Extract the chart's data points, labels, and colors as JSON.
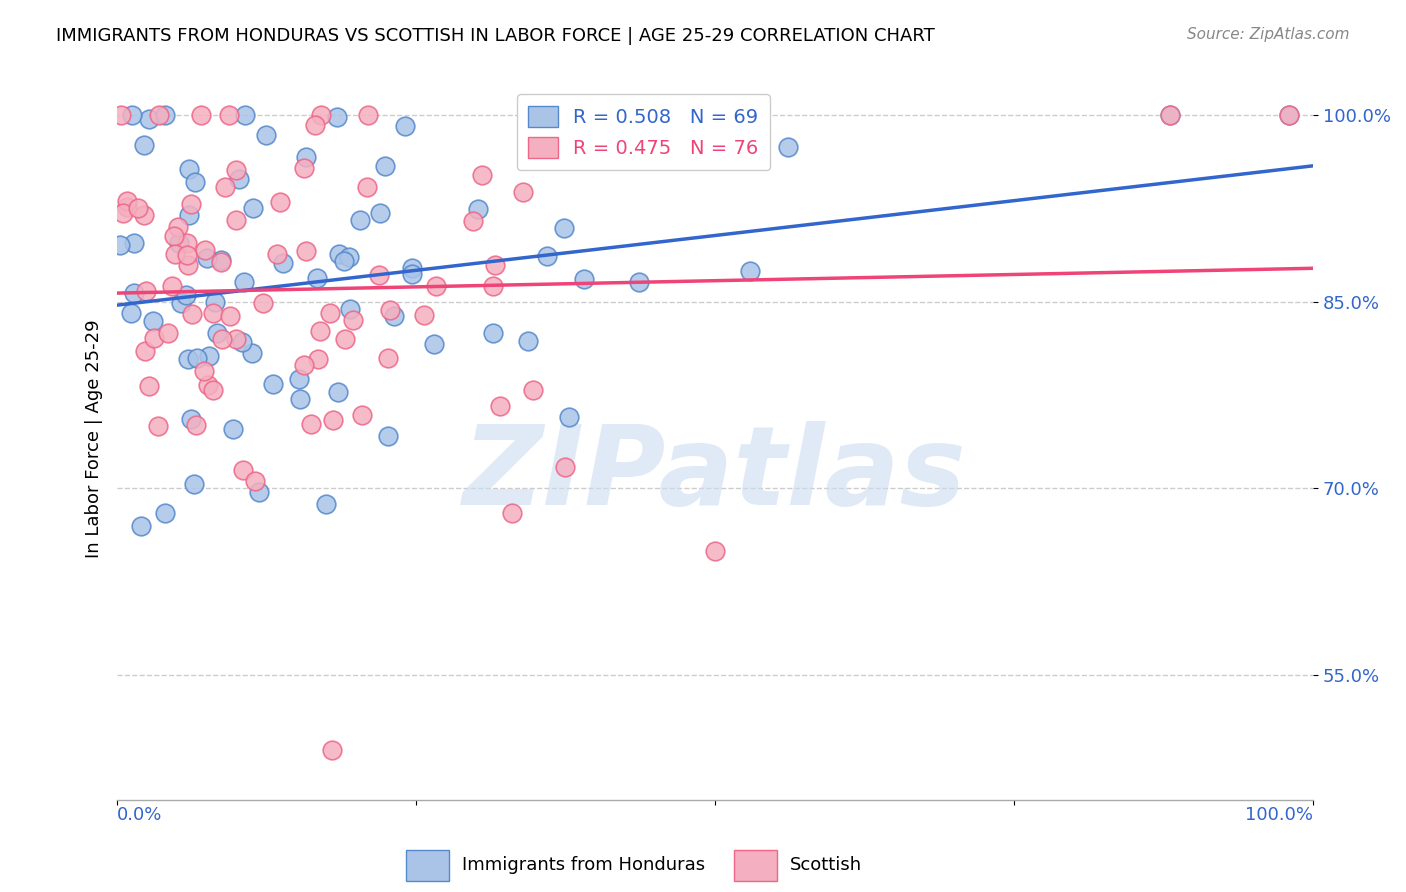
{
  "title": "IMMIGRANTS FROM HONDURAS VS SCOTTISH IN LABOR FORCE | AGE 25-29 CORRELATION CHART",
  "source": "Source: ZipAtlas.com",
  "ylabel": "In Labor Force | Age 25-29",
  "xlim": [
    0.0,
    1.0
  ],
  "ylim": [
    0.45,
    1.03
  ],
  "yticks": [
    0.55,
    0.7,
    0.85,
    1.0
  ],
  "ytick_labels": [
    "55.0%",
    "70.0%",
    "85.0%",
    "100.0%"
  ],
  "legend1_label": "R = 0.508   N = 69",
  "legend2_label": "R = 0.475   N = 76",
  "watermark": "ZIPatlas",
  "blue_face": "#aac4e8",
  "blue_edge": "#5588cc",
  "pink_face": "#f4b0c0",
  "pink_edge": "#ee6688",
  "blue_line": "#3366cc",
  "pink_line": "#ee4477",
  "ytick_color": "#3366cc",
  "grid_color": "#cccccc",
  "title_fontsize": 13,
  "source_fontsize": 11,
  "tick_fontsize": 13,
  "legend_fontsize": 14,
  "ylabel_fontsize": 13
}
